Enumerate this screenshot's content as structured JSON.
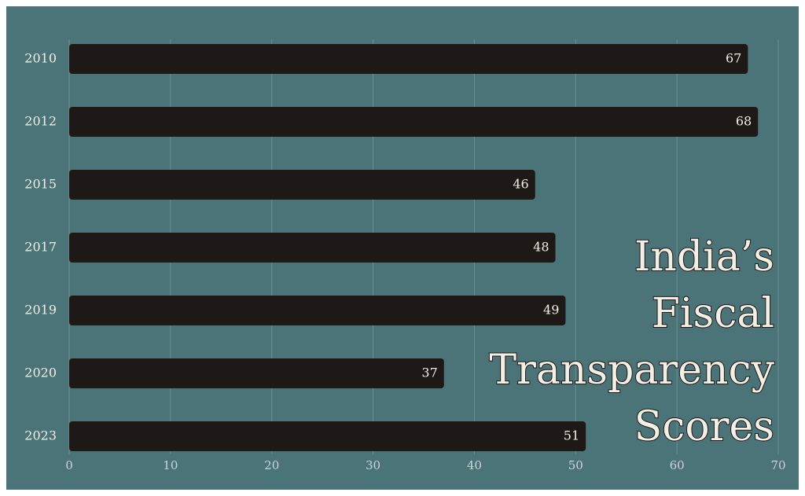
{
  "chart_data": {
    "type": "bar",
    "orientation": "horizontal",
    "title": "India’s Fiscal Transparency Scores",
    "categories": [
      "2010",
      "2012",
      "2015",
      "2017",
      "2019",
      "2020",
      "2023"
    ],
    "values": [
      67,
      68,
      46,
      48,
      49,
      37,
      51
    ],
    "color": "#1e1816",
    "xlim": [
      0,
      70
    ],
    "xticks": [
      0,
      10,
      20,
      30,
      40,
      50,
      60,
      70
    ],
    "grid": true
  }
}
